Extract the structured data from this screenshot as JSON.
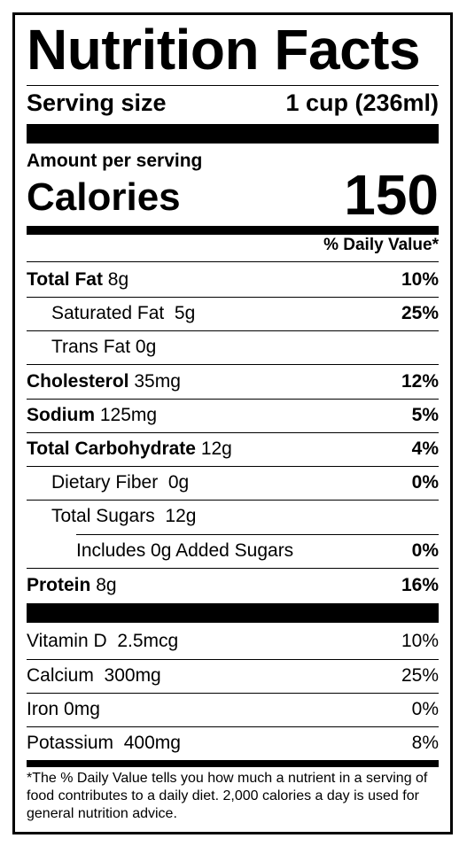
{
  "title": "Nutrition Facts",
  "serving": {
    "label": "Serving size",
    "value": "1 cup (236ml)"
  },
  "amount_per_serving": "Amount per serving",
  "calories": {
    "label": "Calories",
    "value": "150"
  },
  "daily_value_header": "% Daily Value*",
  "nutrients": [
    {
      "name": "Total Fat",
      "amount": "8g",
      "dv": "10%"
    },
    {
      "name": "Saturated Fat",
      "amount": "5g",
      "dv": "25%"
    },
    {
      "name": "Trans Fat",
      "amount": "0g",
      "dv": ""
    },
    {
      "name": "Cholesterol",
      "amount": "35mg",
      "dv": "12%"
    },
    {
      "name": "Sodium",
      "amount": "125mg",
      "dv": "5%"
    },
    {
      "name": "Total Carbohydrate",
      "amount": "12g",
      "dv": "4%"
    },
    {
      "name": "Dietary Fiber",
      "amount": "0g",
      "dv": "0%"
    },
    {
      "name": "Total Sugars",
      "amount": "12g",
      "dv": ""
    },
    {
      "name": "Includes 0g Added Sugars",
      "amount": "",
      "dv": "0%"
    },
    {
      "name": "Protein",
      "amount": "8g",
      "dv": "16%"
    }
  ],
  "vitamins": [
    {
      "name": "Vitamin D",
      "amount": "2.5mcg",
      "dv": "10%"
    },
    {
      "name": "Calcium",
      "amount": "300mg",
      "dv": "25%"
    },
    {
      "name": "Iron",
      "amount": "0mg",
      "dv": "0%"
    },
    {
      "name": "Potassium",
      "amount": "400mg",
      "dv": "8%"
    }
  ],
  "footnote": "*The % Daily Value tells you how much a nutrient in a serving of food contributes to a daily diet. 2,000 calories a day is used for general nutrition advice."
}
